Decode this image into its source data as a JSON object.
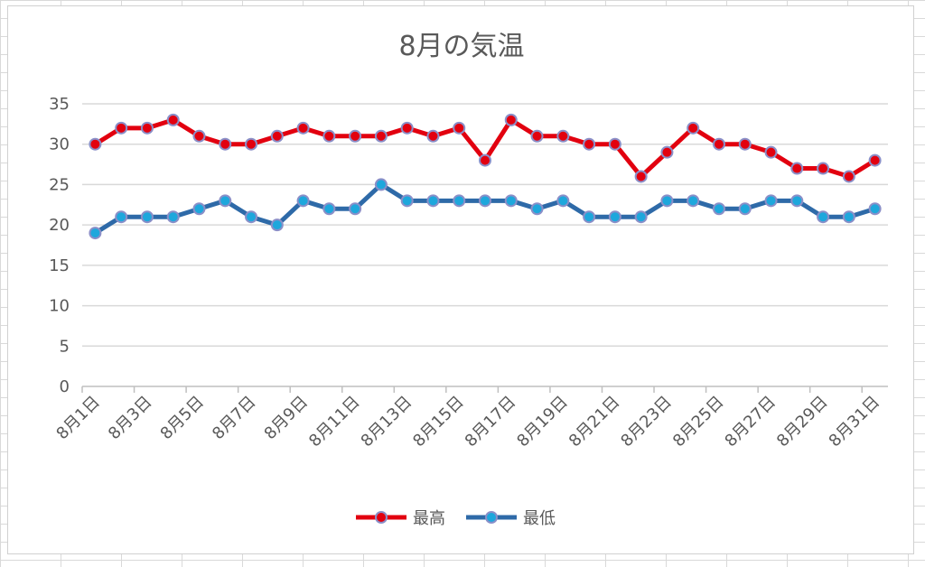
{
  "chart_data": {
    "type": "line",
    "title": "8月の気温",
    "xlabel": "",
    "ylabel": "",
    "ylim": [
      0,
      35
    ],
    "yticks": [
      "0",
      "5",
      "10",
      "15",
      "20",
      "25",
      "30",
      "35"
    ],
    "grid": true,
    "legend_position": "bottom",
    "categories": [
      "8月1日",
      "8月2日",
      "8月3日",
      "8月4日",
      "8月5日",
      "8月6日",
      "8月7日",
      "8月8日",
      "8月9日",
      "8月10日",
      "8月11日",
      "8月12日",
      "8月13日",
      "8月14日",
      "8月15日",
      "8月16日",
      "8月17日",
      "8月18日",
      "8月19日",
      "8月20日",
      "8月21日",
      "8月22日",
      "8月23日",
      "8月24日",
      "8月25日",
      "8月26日",
      "8月27日",
      "8月28日",
      "8月29日",
      "8月30日",
      "8月31日"
    ],
    "xtick_labels": [
      "8月1日",
      "8月3日",
      "8月5日",
      "8月7日",
      "8月9日",
      "8月11日",
      "8月13日",
      "8月15日",
      "8月17日",
      "8月19日",
      "8月21日",
      "8月23日",
      "8月25日",
      "8月27日",
      "8月29日",
      "8月31日"
    ],
    "series": [
      {
        "name": "最高",
        "color": "#e2000f",
        "marker_color": "#e2000f",
        "values": [
          30,
          32,
          32,
          33,
          31,
          30,
          30,
          31,
          32,
          31,
          31,
          31,
          32,
          31,
          32,
          28,
          33,
          31,
          31,
          30,
          30,
          26,
          29,
          32,
          30,
          30,
          29,
          27,
          27,
          26,
          28
        ]
      },
      {
        "name": "最低",
        "color": "#2e6aa8",
        "marker_color": "#1ea7dc",
        "values": [
          19,
          21,
          21,
          21,
          22,
          23,
          21,
          20,
          23,
          22,
          22,
          25,
          23,
          23,
          23,
          23,
          23,
          22,
          23,
          21,
          21,
          21,
          23,
          23,
          22,
          22,
          23,
          23,
          21,
          21,
          22
        ]
      }
    ]
  }
}
